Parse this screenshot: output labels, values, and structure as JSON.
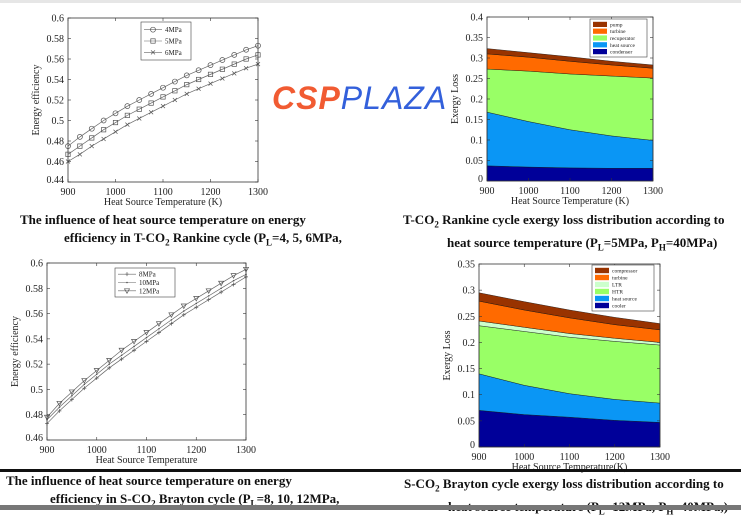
{
  "captions": [
    {
      "lines": [
        [
          {
            "t": "The influence of heat source temperature on energy"
          }
        ],
        [
          {
            "t": "efficiency in T-CO"
          },
          {
            "sub": "2"
          },
          {
            "t": " Rankine cycle (P"
          },
          {
            "sub": "L"
          },
          {
            "t": "=4, 5, 6MPa,"
          }
        ]
      ]
    },
    {
      "lines": [
        [
          {
            "t": "T-CO"
          },
          {
            "sub": "2"
          },
          {
            "t": " Rankine cycle exergy loss distribution according to"
          }
        ],
        [
          {
            "t": "heat source temperature (P"
          },
          {
            "sub": "L"
          },
          {
            "t": "=5MPa, P"
          },
          {
            "sub": "H"
          },
          {
            "t": "=40MPa)"
          }
        ]
      ]
    },
    {
      "lines": [
        [
          {
            "t": "The influence of heat source temperature on energy"
          }
        ],
        [
          {
            "t": "efficiency in S-CO"
          },
          {
            "sub": "2"
          },
          {
            "t": " Brayton cycle (P"
          },
          {
            "sub": "L"
          },
          {
            "t": "=8, 10, 12MPa,"
          }
        ]
      ]
    },
    {
      "lines": [
        [
          {
            "t": "S-CO"
          },
          {
            "sub": "2"
          },
          {
            "t": " Brayton cycle exergy loss distribution according to"
          }
        ],
        [
          {
            "t": "heat source temperature (P"
          },
          {
            "sub": "L"
          },
          {
            "t": "=12MPa, P"
          },
          {
            "sub": "H"
          },
          {
            "t": "=40MPa,)"
          }
        ]
      ]
    }
  ],
  "watermark": {
    "part1": "CSP",
    "part2": "PLAZA"
  },
  "chart_data": [
    {
      "type": "line",
      "xlabel": "Heat Source Temperature (K)",
      "ylabel": "Energy efficiency",
      "xlim": [
        900,
        1300
      ],
      "ylim": [
        0.44,
        0.6
      ],
      "xticks": [
        900,
        1000,
        1100,
        1200,
        1300
      ],
      "yticks": [
        0.44,
        0.46,
        0.48,
        0.5,
        0.52,
        0.54,
        0.56,
        0.58,
        0.6
      ],
      "legend": "top-center",
      "x": [
        900,
        925,
        950,
        975,
        1000,
        1025,
        1050,
        1075,
        1100,
        1125,
        1150,
        1175,
        1200,
        1225,
        1250,
        1275,
        1300
      ],
      "series": [
        {
          "name": "4MPa",
          "marker": "circle",
          "values": [
            0.475,
            0.484,
            0.492,
            0.5,
            0.507,
            0.514,
            0.52,
            0.526,
            0.532,
            0.538,
            0.544,
            0.549,
            0.554,
            0.559,
            0.564,
            0.569,
            0.573
          ]
        },
        {
          "name": "5MPa",
          "marker": "square",
          "values": [
            0.467,
            0.475,
            0.483,
            0.491,
            0.498,
            0.505,
            0.511,
            0.517,
            0.523,
            0.529,
            0.535,
            0.54,
            0.545,
            0.55,
            0.555,
            0.56,
            0.564
          ]
        },
        {
          "name": "6MPa",
          "marker": "x",
          "values": [
            0.46,
            0.467,
            0.475,
            0.482,
            0.489,
            0.496,
            0.502,
            0.508,
            0.514,
            0.52,
            0.526,
            0.531,
            0.536,
            0.541,
            0.546,
            0.551,
            0.555
          ]
        }
      ]
    },
    {
      "type": "area",
      "stacked": true,
      "xlabel": "Heat Source Temperature (K)",
      "ylabel": "Exergy Loss",
      "xlim": [
        900,
        1300
      ],
      "ylim": [
        0,
        0.4
      ],
      "xticks": [
        900,
        1000,
        1100,
        1200,
        1300
      ],
      "yticks": [
        0,
        0.05,
        0.1,
        0.15,
        0.2,
        0.25,
        0.3,
        0.35,
        0.4
      ],
      "legend": "top-right",
      "x": [
        900,
        1000,
        1100,
        1200,
        1300
      ],
      "series": [
        {
          "name": "condenser",
          "color": "#000099",
          "values": [
            0.037,
            0.034,
            0.032,
            0.031,
            0.031
          ]
        },
        {
          "name": "heat source",
          "color": "#0a96f5",
          "values": [
            0.131,
            0.111,
            0.093,
            0.079,
            0.068
          ]
        },
        {
          "name": "recuperator",
          "color": "#99ff66",
          "values": [
            0.105,
            0.123,
            0.136,
            0.146,
            0.152
          ]
        },
        {
          "name": "turbine",
          "color": "#ff6a00",
          "values": [
            0.037,
            0.034,
            0.031,
            0.027,
            0.024
          ]
        },
        {
          "name": "pump",
          "color": "#993300",
          "values": [
            0.013,
            0.011,
            0.011,
            0.009,
            0.008
          ]
        }
      ]
    },
    {
      "type": "line",
      "xlabel": "Heat Source Temperature",
      "ylabel": "Energy efficiency",
      "xlim": [
        900,
        1300
      ],
      "ylim": [
        0.46,
        0.6
      ],
      "xticks": [
        900,
        1000,
        1100,
        1200,
        1300
      ],
      "yticks": [
        0.46,
        0.48,
        0.5,
        0.52,
        0.54,
        0.56,
        0.58,
        0.6
      ],
      "legend": "top-center",
      "x": [
        900,
        925,
        950,
        975,
        1000,
        1025,
        1050,
        1075,
        1100,
        1125,
        1150,
        1175,
        1200,
        1225,
        1250,
        1275,
        1300
      ],
      "series": [
        {
          "name": "8MPa",
          "marker": "plus",
          "values": [
            0.473,
            0.483,
            0.492,
            0.501,
            0.509,
            0.517,
            0.524,
            0.531,
            0.538,
            0.545,
            0.552,
            0.559,
            0.565,
            0.571,
            0.577,
            0.583,
            0.589
          ]
        },
        {
          "name": "10MPa",
          "marker": "dot",
          "values": [
            0.476,
            0.486,
            0.495,
            0.504,
            0.512,
            0.52,
            0.527,
            0.534,
            0.541,
            0.548,
            0.555,
            0.562,
            0.568,
            0.574,
            0.58,
            0.586,
            0.591
          ]
        },
        {
          "name": "12MPa",
          "marker": "triangle-down",
          "values": [
            0.478,
            0.489,
            0.498,
            0.507,
            0.515,
            0.523,
            0.531,
            0.538,
            0.545,
            0.552,
            0.559,
            0.566,
            0.572,
            0.578,
            0.584,
            0.59,
            0.595
          ]
        }
      ]
    },
    {
      "type": "area",
      "stacked": true,
      "xlabel": "Heat Source Temperature(K)",
      "ylabel": "Exergy Loss",
      "xlim": [
        900,
        1300
      ],
      "ylim": [
        0,
        0.35
      ],
      "xticks": [
        900,
        1000,
        1100,
        1200,
        1300
      ],
      "yticks": [
        0,
        0.05,
        0.1,
        0.15,
        0.2,
        0.25,
        0.3,
        0.35
      ],
      "legend": "top-right",
      "x": [
        900,
        1000,
        1100,
        1200,
        1300
      ],
      "series": [
        {
          "name": "cooler",
          "color": "#000099",
          "values": [
            0.07,
            0.062,
            0.057,
            0.051,
            0.047
          ]
        },
        {
          "name": "heat source",
          "color": "#0a96f5",
          "values": [
            0.07,
            0.056,
            0.045,
            0.04,
            0.037
          ]
        },
        {
          "name": "HTR",
          "color": "#99ff66",
          "values": [
            0.092,
            0.103,
            0.108,
            0.111,
            0.111
          ]
        },
        {
          "name": "LTR",
          "color": "#ccffcc",
          "values": [
            0.009,
            0.008,
            0.007,
            0.006,
            0.005
          ]
        },
        {
          "name": "turbine",
          "color": "#ff6a00",
          "values": [
            0.038,
            0.033,
            0.03,
            0.026,
            0.024
          ]
        },
        {
          "name": "compressor",
          "color": "#993300",
          "values": [
            0.016,
            0.016,
            0.015,
            0.014,
            0.012
          ]
        }
      ]
    }
  ]
}
